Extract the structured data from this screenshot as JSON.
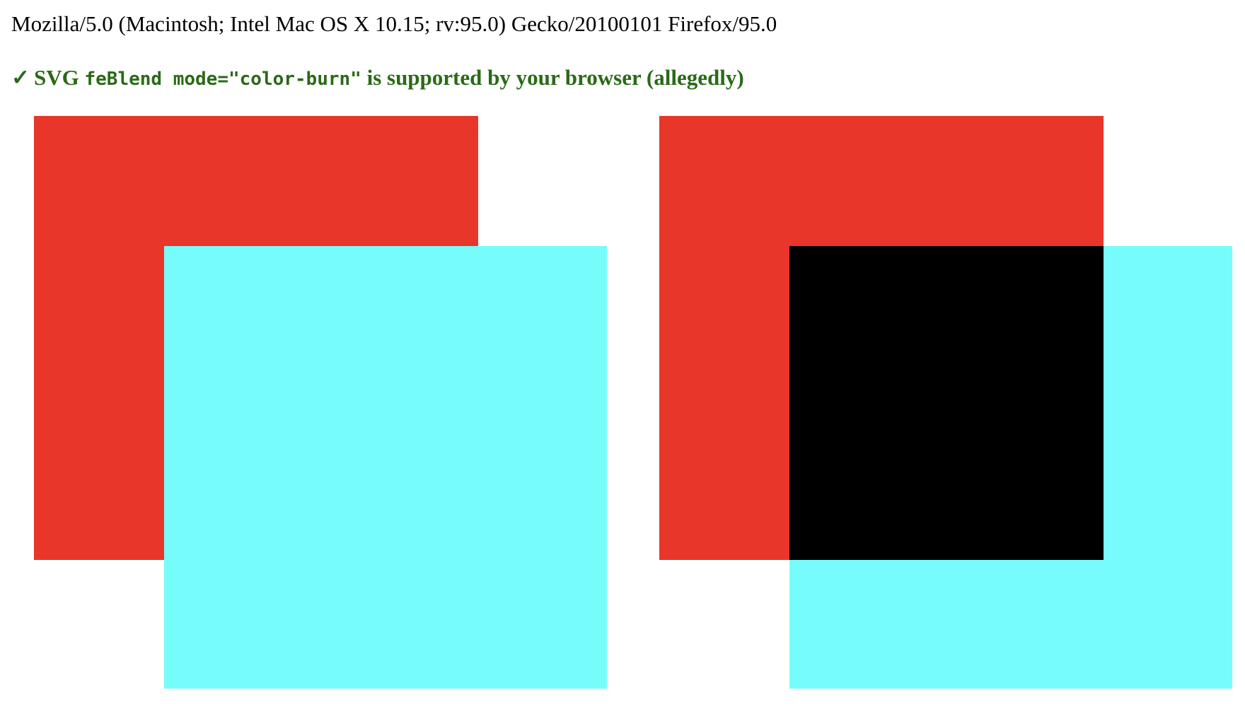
{
  "user_agent": "Mozilla/5.0 (Macintosh; Intel Mac OS X 10.15; rv:95.0) Gecko/20100101 Firefox/95.0",
  "status": {
    "check_glyph": "✓",
    "prefix": "SVG",
    "code": "feBlend mode=\"color-burn\"",
    "suffix": "is supported by your browser (allegedly)",
    "color": "#2a6a16"
  },
  "colors": {
    "background_square": "#e9362a",
    "source_square": "#77fcfc",
    "blend_overlap": "#000000"
  },
  "demos": [
    {
      "name": "reference-unblended",
      "blend_mode": "normal"
    },
    {
      "name": "feblend-color-burn",
      "blend_mode": "color-burn"
    }
  ]
}
